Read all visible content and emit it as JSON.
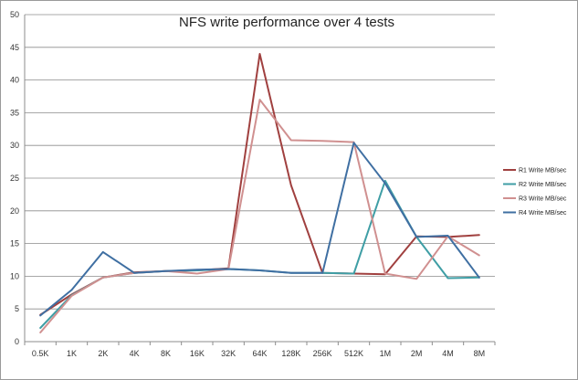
{
  "chart_data": {
    "type": "line",
    "title": "NFS write performance over 4 tests",
    "xlabel": "",
    "ylabel": "",
    "categories": [
      "0.5K",
      "1K",
      "2K",
      "4K",
      "8K",
      "16K",
      "32K",
      "64K",
      "128K",
      "256K",
      "512K",
      "1M",
      "2M",
      "4M",
      "8M"
    ],
    "ylim": [
      0,
      50
    ],
    "yticks": [
      0,
      5,
      10,
      15,
      20,
      25,
      30,
      35,
      40,
      45,
      50
    ],
    "grid": "horizontal",
    "legend_position": "right",
    "series": [
      {
        "name": "R1 Write MB/sec",
        "color": "#a0403f",
        "values": [
          4.1,
          7.2,
          9.8,
          10.6,
          10.8,
          10.9,
          11.2,
          44.0,
          23.9,
          10.5,
          10.4,
          10.3,
          16.1,
          16.0,
          16.3
        ]
      },
      {
        "name": "R2 Write MB/sec",
        "color": "#3f9ea5",
        "values": [
          2.1,
          7.1,
          9.8,
          10.5,
          10.8,
          10.9,
          11.1,
          10.9,
          10.5,
          10.5,
          10.4,
          24.6,
          16.0,
          9.7,
          9.8
        ]
      },
      {
        "name": "R3 Write MB/sec",
        "color": "#d09090",
        "values": [
          1.4,
          7.0,
          9.8,
          10.5,
          10.8,
          10.4,
          11.1,
          37.0,
          30.8,
          30.7,
          30.5,
          10.4,
          9.6,
          16.1,
          13.2
        ]
      },
      {
        "name": "R4 Write MB/sec",
        "color": "#3f6fa2",
        "values": [
          4.0,
          7.9,
          13.7,
          10.5,
          10.8,
          11.0,
          11.1,
          10.9,
          10.5,
          10.5,
          30.4,
          24.2,
          16.0,
          16.2,
          9.8
        ]
      }
    ]
  }
}
